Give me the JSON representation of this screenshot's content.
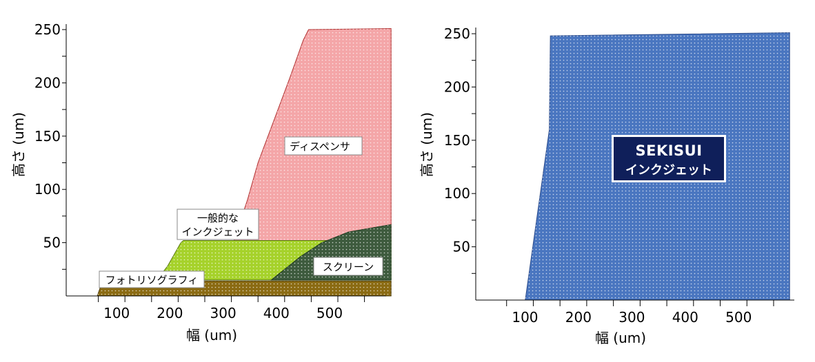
{
  "chart_data": [
    {
      "type": "area",
      "title": "",
      "xlabel": "幅 (um)",
      "ylabel": "高さ (um)",
      "xlim": [
        0,
        600
      ],
      "ylim": [
        0,
        255
      ],
      "x_tick_labels": [
        100,
        200,
        300,
        400,
        500
      ],
      "y_tick_labels": [
        50,
        100,
        150,
        200,
        250
      ],
      "grid": false,
      "legend": "none",
      "series": [
        {
          "name": "ディスペンサ",
          "color": "#f4a6a8",
          "edge_color": "#b03030",
          "points": [
            [
              305,
              52
            ],
            [
              310,
              60
            ],
            [
              330,
              90
            ],
            [
              350,
              125
            ],
            [
              380,
              165
            ],
            [
              410,
              205
            ],
            [
              435,
              240
            ],
            [
              445,
              250
            ],
            [
              600,
              251
            ],
            [
              600,
              52
            ]
          ]
        },
        {
          "name": "一般的なインクジェット",
          "color": "#a6d22b",
          "edge_color": "#5a7a10",
          "points": [
            [
              160,
              15
            ],
            [
              180,
              28
            ],
            [
              205,
              50
            ],
            [
              210,
              52
            ],
            [
              305,
              52
            ],
            [
              600,
              52
            ],
            [
              600,
              15
            ]
          ]
        },
        {
          "name": "スクリーン",
          "color": "#3e5b3e",
          "edge_color": "#1f3a1f",
          "points": [
            [
              375,
              15
            ],
            [
              400,
              25
            ],
            [
              430,
              37
            ],
            [
              470,
              50
            ],
            [
              520,
              60
            ],
            [
              600,
              67
            ],
            [
              600,
              15
            ]
          ]
        },
        {
          "name": "フォトリソグラフィ",
          "color": "#8b6b13",
          "edge_color": "#4a3a08",
          "points": [
            [
              48,
              0
            ],
            [
              55,
              10
            ],
            [
              60,
              14
            ],
            [
              600,
              14
            ],
            [
              600,
              0
            ]
          ]
        }
      ],
      "labels": [
        {
          "text": "ディスペンサ",
          "lines": [
            "ディスペンサ"
          ]
        },
        {
          "text": "一般的なインクジェット",
          "lines": [
            "一般的な",
            "インクジェット"
          ]
        },
        {
          "text": "スクリーン",
          "lines": [
            "スクリーン"
          ]
        },
        {
          "text": "フォトリソグラフィ",
          "lines": [
            "フォトリソグラフィ"
          ]
        }
      ]
    },
    {
      "type": "area",
      "title": "",
      "xlabel": "幅 (um)",
      "ylabel": "高さ (um)",
      "xlim": [
        0,
        600
      ],
      "ylim": [
        0,
        255
      ],
      "x_tick_labels": [
        100,
        200,
        300,
        400,
        500
      ],
      "y_tick_labels": [
        50,
        100,
        150,
        200,
        250
      ],
      "grid": false,
      "legend": "none",
      "series": [
        {
          "name": "SEKISUI インクジェット",
          "color": "#4a76c0",
          "edge_color": "#2a4a8a",
          "points": [
            [
              85,
              0
            ],
            [
              130,
              160
            ],
            [
              132,
              248
            ],
            [
              580,
              251
            ],
            [
              580,
              0
            ]
          ]
        }
      ],
      "logo": {
        "brand": "SEKISUI",
        "subtitle": "インクジェット",
        "bg_color": "#0f1f5a"
      }
    }
  ]
}
